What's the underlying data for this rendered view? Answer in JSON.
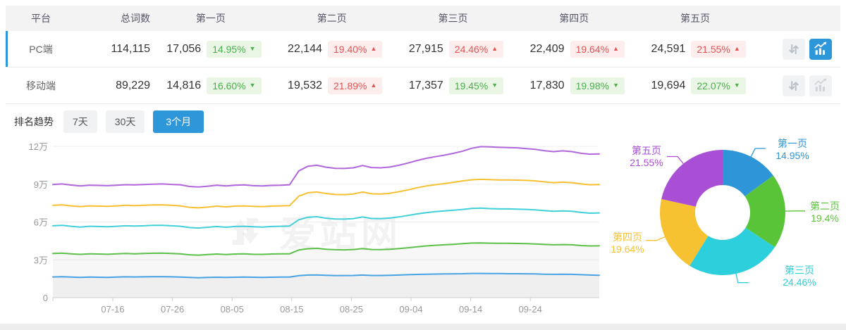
{
  "table": {
    "headers": [
      "平台",
      "总词数",
      "第一页",
      "第二页",
      "第三页",
      "第四页",
      "第五页"
    ],
    "rows": [
      {
        "platform": "PC端",
        "total": "114,115",
        "selected": true,
        "pages": [
          {
            "value": "17,056",
            "pct": "14.95%",
            "trend": "down",
            "arrow": "▼",
            "color": "green"
          },
          {
            "value": "22,144",
            "pct": "19.40%",
            "trend": "up",
            "arrow": "▲",
            "color": "red"
          },
          {
            "value": "27,915",
            "pct": "24.46%",
            "trend": "up",
            "arrow": "▲",
            "color": "red"
          },
          {
            "value": "22,409",
            "pct": "19.64%",
            "trend": "up",
            "arrow": "▲",
            "color": "red"
          },
          {
            "value": "24,591",
            "pct": "21.55%",
            "trend": "up",
            "arrow": "▲",
            "color": "red"
          }
        ]
      },
      {
        "platform": "移动端",
        "total": "89,229",
        "selected": false,
        "pages": [
          {
            "value": "14,816",
            "pct": "16.60%",
            "trend": "down",
            "arrow": "▼",
            "color": "green"
          },
          {
            "value": "19,532",
            "pct": "21.89%",
            "trend": "up",
            "arrow": "▲",
            "color": "red"
          },
          {
            "value": "17,357",
            "pct": "19.45%",
            "trend": "down",
            "arrow": "▼",
            "color": "green"
          },
          {
            "value": "17,830",
            "pct": "19.98%",
            "trend": "down",
            "arrow": "▼",
            "color": "green"
          },
          {
            "value": "19,694",
            "pct": "22.07%",
            "trend": "down",
            "arrow": "▼",
            "color": "green"
          }
        ]
      }
    ]
  },
  "trend": {
    "label": "排名趋势",
    "ranges": [
      "7天",
      "30天",
      "3个月"
    ],
    "active": "3个月"
  },
  "watermark": {
    "text": "爱站网"
  },
  "colors": {
    "accent_blue": "#2e97da",
    "badge_green_text": "#4cae4c",
    "badge_green_bg": "#e9f6e5",
    "badge_red_text": "#e25454",
    "badge_red_bg": "#fdeded",
    "table_header_bg": "#f3f3f4",
    "axis_label": "#999999",
    "gridline": "#efefef"
  },
  "chart_data": [
    {
      "type": "line",
      "title": "排名趋势 (3个月)",
      "x_ticks": [
        "07-16",
        "07-26",
        "08-05",
        "08-15",
        "08-25",
        "09-04",
        "09-14",
        "09-24"
      ],
      "y_ticks": [
        "12万",
        "9万",
        "6万",
        "3万",
        "0"
      ],
      "y_tick_values": [
        12,
        9,
        6,
        3,
        0
      ],
      "ylim": [
        0,
        12
      ],
      "unit": "万",
      "grid": true,
      "series": [
        {
          "name": "line-purple",
          "color": "#b266db",
          "values": [
            8.97,
            9.02,
            8.93,
            8.86,
            8.92,
            8.9,
            8.88,
            8.92,
            8.96,
            8.94,
            8.97,
            9.0,
            9.02,
            8.98,
            8.95,
            8.82,
            8.78,
            8.84,
            8.92,
            8.86,
            8.92,
            8.94,
            8.88,
            8.86,
            8.9,
            8.92,
            8.95,
            10.05,
            10.42,
            10.5,
            10.35,
            10.26,
            10.25,
            10.3,
            10.48,
            10.32,
            10.3,
            10.36,
            10.5,
            10.68,
            10.88,
            11.05,
            11.18,
            11.3,
            11.45,
            11.62,
            11.85,
            11.98,
            11.96,
            11.92,
            11.9,
            11.88,
            11.82,
            11.76,
            11.65,
            11.58,
            11.64,
            11.58,
            11.45,
            11.38,
            11.4
          ]
        },
        {
          "name": "line-yellow",
          "color": "#f7c033",
          "values": [
            7.32,
            7.36,
            7.28,
            7.22,
            7.28,
            7.26,
            7.24,
            7.28,
            7.32,
            7.3,
            7.32,
            7.35,
            7.36,
            7.32,
            7.28,
            7.16,
            7.12,
            7.18,
            7.26,
            7.2,
            7.26,
            7.28,
            7.24,
            7.22,
            7.26,
            7.28,
            7.3,
            8.05,
            8.32,
            8.38,
            8.26,
            8.18,
            8.17,
            8.22,
            8.38,
            8.24,
            8.22,
            8.28,
            8.4,
            8.55,
            8.72,
            8.86,
            8.96,
            9.05,
            9.15,
            9.26,
            9.35,
            9.38,
            9.36,
            9.34,
            9.34,
            9.32,
            9.3,
            9.26,
            9.18,
            9.12,
            9.16,
            9.12,
            9.02,
            8.95,
            8.97
          ]
        },
        {
          "name": "line-cyan",
          "color": "#41d0d9",
          "values": [
            5.7,
            5.74,
            5.66,
            5.6,
            5.66,
            5.64,
            5.62,
            5.66,
            5.7,
            5.68,
            5.7,
            5.73,
            5.74,
            5.7,
            5.66,
            5.56,
            5.52,
            5.58,
            5.64,
            5.58,
            5.64,
            5.66,
            5.62,
            5.6,
            5.64,
            5.66,
            5.68,
            6.18,
            6.38,
            6.42,
            6.3,
            6.24,
            6.23,
            6.27,
            6.4,
            6.28,
            6.27,
            6.31,
            6.4,
            6.52,
            6.64,
            6.74,
            6.82,
            6.88,
            6.94,
            7.0,
            7.08,
            7.1,
            7.06,
            7.04,
            7.04,
            7.02,
            7.0,
            6.96,
            6.9,
            6.85,
            6.88,
            6.85,
            6.76,
            6.7,
            6.72
          ]
        },
        {
          "name": "line-green",
          "color": "#5cc04a",
          "area": true,
          "values": [
            3.5,
            3.53,
            3.47,
            3.43,
            3.47,
            3.46,
            3.44,
            3.47,
            3.5,
            3.48,
            3.5,
            3.52,
            3.53,
            3.5,
            3.47,
            3.4,
            3.37,
            3.42,
            3.46,
            3.42,
            3.46,
            3.47,
            3.44,
            3.43,
            3.46,
            3.47,
            3.48,
            3.78,
            3.88,
            3.91,
            3.84,
            3.8,
            3.79,
            3.82,
            3.89,
            3.82,
            3.81,
            3.84,
            3.89,
            3.96,
            4.03,
            4.1,
            4.15,
            4.19,
            4.23,
            4.28,
            4.33,
            4.34,
            4.32,
            4.31,
            4.31,
            4.3,
            4.28,
            4.26,
            4.22,
            4.19,
            4.21,
            4.19,
            4.13,
            4.1,
            4.11
          ]
        },
        {
          "name": "line-blue",
          "color": "#49a3e3",
          "area": true,
          "values": [
            1.64,
            1.66,
            1.63,
            1.61,
            1.63,
            1.62,
            1.61,
            1.63,
            1.65,
            1.64,
            1.65,
            1.66,
            1.66,
            1.65,
            1.63,
            1.6,
            1.58,
            1.6,
            1.62,
            1.6,
            1.62,
            1.63,
            1.62,
            1.61,
            1.62,
            1.63,
            1.63,
            1.74,
            1.79,
            1.8,
            1.77,
            1.75,
            1.75,
            1.76,
            1.79,
            1.76,
            1.76,
            1.77,
            1.79,
            1.82,
            1.84,
            1.86,
            1.87,
            1.88,
            1.89,
            1.9,
            1.92,
            1.92,
            1.91,
            1.91,
            1.9,
            1.9,
            1.89,
            1.88,
            1.86,
            1.85,
            1.86,
            1.85,
            1.82,
            1.79,
            1.77
          ]
        }
      ]
    },
    {
      "type": "pie",
      "donut": true,
      "legend_position": "around",
      "segments": [
        {
          "label": "第一页",
          "value": 14.95,
          "display": "14.95%",
          "color": "#2e96d8"
        },
        {
          "label": "第二页",
          "value": 19.4,
          "display": "19.4%",
          "color": "#5ac438"
        },
        {
          "label": "第三页",
          "value": 24.46,
          "display": "24.46%",
          "color": "#2ecfdc"
        },
        {
          "label": "第四页",
          "value": 19.64,
          "display": "19.64%",
          "color": "#f7c231"
        },
        {
          "label": "第五页",
          "value": 21.55,
          "display": "21.55%",
          "color": "#a94fd6"
        }
      ]
    }
  ]
}
